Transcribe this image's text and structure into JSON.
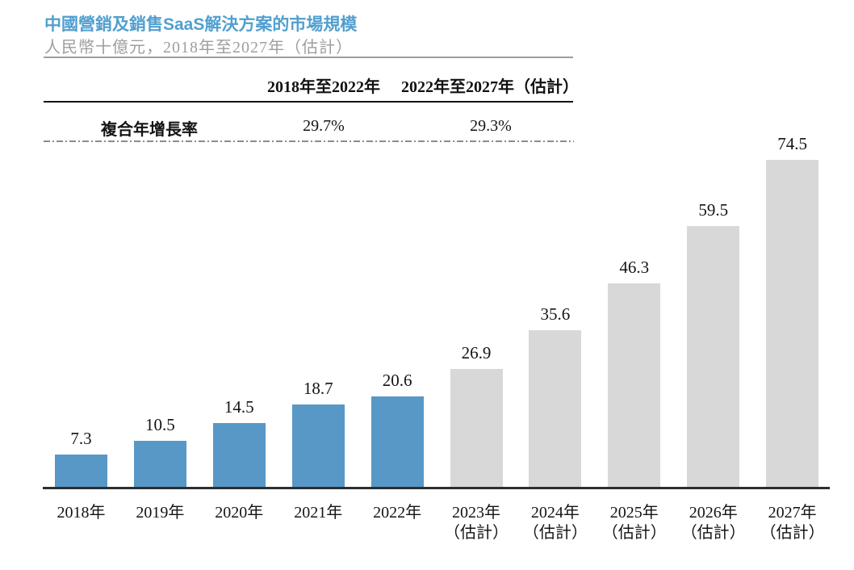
{
  "header": {
    "title": "中國營銷及銷售SaaS解決方案的市場規模",
    "subtitle": "人民幣十億元，2018年至2027年（估計）"
  },
  "cagr_table": {
    "column_headers": [
      "2018年至2022年",
      "2022年至2027年（估計）"
    ],
    "row_label": "複合年增長率",
    "values": [
      "29.7%",
      "29.3%"
    ]
  },
  "colors": {
    "title": "#519fd0",
    "actual_bar": "#5898c6",
    "estimate_bar": "#d8d8d8",
    "axis_line": "#2f2f2f",
    "subtitle_text": "#9e9e9e"
  },
  "chart_data": {
    "type": "bar",
    "title": "中國營銷及銷售SaaS解決方案的市場規模",
    "unit": "人民幣十億元",
    "period_note": "2018年至2027年（估計）",
    "categories": [
      "2018年",
      "2019年",
      "2020年",
      "2021年",
      "2022年",
      "2023年（估計）",
      "2024年（估計）",
      "2025年（估計）",
      "2026年（估計）",
      "2027年（估計）"
    ],
    "values": [
      7.3,
      10.5,
      14.5,
      18.7,
      20.6,
      26.9,
      35.6,
      46.3,
      59.5,
      74.5
    ],
    "x_labels": [
      [
        "2018年"
      ],
      [
        "2019年"
      ],
      [
        "2020年"
      ],
      [
        "2021年"
      ],
      [
        "2022年"
      ],
      [
        "2023年",
        "（估計）"
      ],
      [
        "2024年",
        "（估計）"
      ],
      [
        "2025年",
        "（估計）"
      ],
      [
        "2026年",
        "（估計）"
      ],
      [
        "2027年",
        "（估計）"
      ]
    ],
    "estimate_from_index": 5,
    "cagr_2018_2022": "29.7%",
    "cagr_2022_2027": "29.3%",
    "ylim": [
      0,
      80
    ],
    "grid": false,
    "legend": "none",
    "value_labels": "above-bars"
  }
}
